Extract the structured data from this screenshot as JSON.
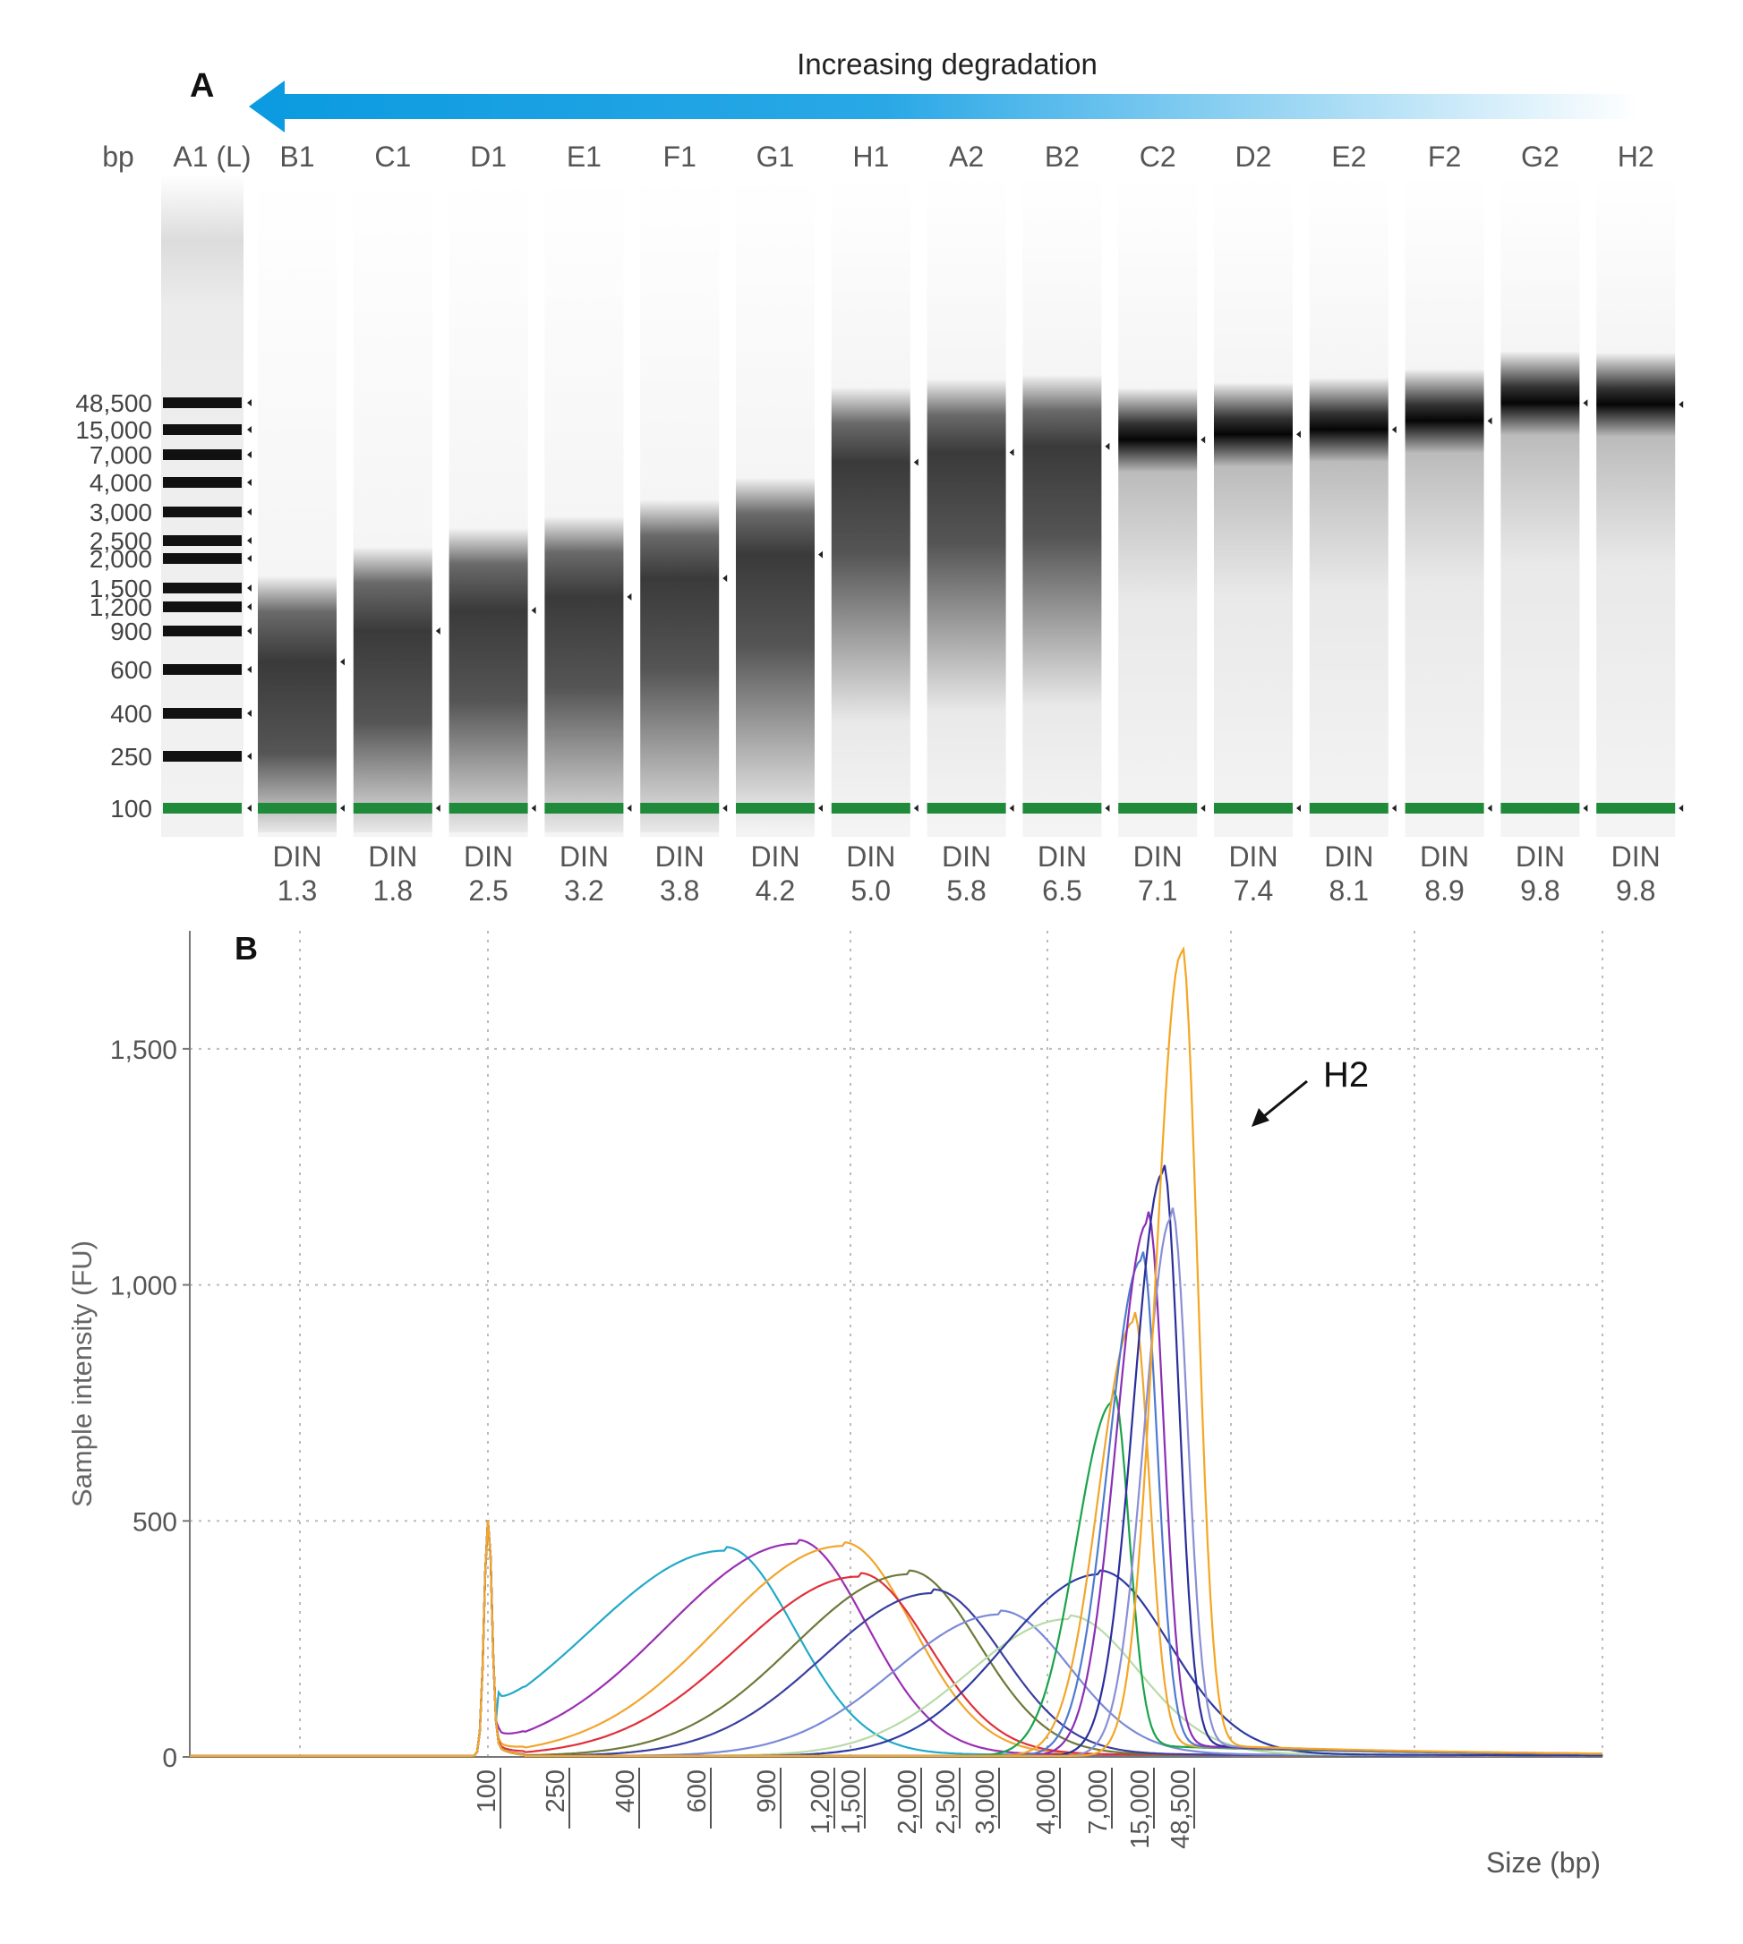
{
  "chart_data": [
    {
      "type": "gel",
      "panel_label": "A",
      "arrow_label": "Increasing degradation",
      "unit_label": "bp",
      "ladder_lane": "A1 (L)",
      "ladder_sizes": [
        "48,500",
        "15,000",
        "7,000",
        "4,000",
        "3,000",
        "2,500",
        "2,000",
        "1,500",
        "1,200",
        "900",
        "600",
        "400",
        "250",
        "100"
      ],
      "ladder_values": [
        48500,
        15000,
        7000,
        4000,
        3000,
        2500,
        2000,
        1500,
        1200,
        900,
        600,
        400,
        250,
        100
      ],
      "lanes": [
        {
          "name": "B1",
          "din_label": "DIN",
          "din": "1.3",
          "peak_bp": 650
        },
        {
          "name": "C1",
          "din_label": "DIN",
          "din": "1.8",
          "peak_bp": 900
        },
        {
          "name": "D1",
          "din_label": "DIN",
          "din": "2.5",
          "peak_bp": 1150
        },
        {
          "name": "E1",
          "din_label": "DIN",
          "din": "3.2",
          "peak_bp": 1350
        },
        {
          "name": "F1",
          "din_label": "DIN",
          "din": "3.8",
          "peak_bp": 1650
        },
        {
          "name": "G1",
          "din_label": "DIN",
          "din": "4.2",
          "peak_bp": 2100
        },
        {
          "name": "H1",
          "din_label": "DIN",
          "din": "5.0",
          "peak_bp": 6000
        },
        {
          "name": "A2",
          "din_label": "DIN",
          "din": "5.8",
          "peak_bp": 7500
        },
        {
          "name": "B2",
          "din_label": "DIN",
          "din": "6.5",
          "peak_bp": 9000
        },
        {
          "name": "C2",
          "din_label": "DIN",
          "din": "7.1",
          "peak_bp": 11000
        },
        {
          "name": "D2",
          "din_label": "DIN",
          "din": "7.4",
          "peak_bp": 13000
        },
        {
          "name": "E2",
          "din_label": "DIN",
          "din": "8.1",
          "peak_bp": 15000
        },
        {
          "name": "F2",
          "din_label": "DIN",
          "din": "8.9",
          "peak_bp": 22000
        },
        {
          "name": "G2",
          "din_label": "DIN",
          "din": "9.8",
          "peak_bp": 48000
        },
        {
          "name": "H2",
          "din_label": "DIN",
          "din": "9.8",
          "peak_bp": 45000
        }
      ],
      "marker_color": "#1f8a3a"
    },
    {
      "type": "line",
      "panel_label": "B",
      "ylabel": "Sample intensity (FU)",
      "xlabel": "Size (bp)",
      "ylim": [
        0,
        1750
      ],
      "yticks": [
        0,
        500,
        1000,
        1500
      ],
      "ytick_labels": [
        "0",
        "500",
        "1,000",
        "1,500"
      ],
      "xticks": [
        100,
        250,
        400,
        600,
        900,
        1200,
        1500,
        2000,
        2500,
        3000,
        4000,
        7000,
        15000,
        48500
      ],
      "xtick_labels": [
        "100",
        "250",
        "400",
        "600",
        "900",
        "1,200",
        "1,500",
        "2,000",
        "2,500",
        "3,000",
        "4,000",
        "7,000",
        "15,000",
        "48,500"
      ],
      "x_scale": "ladder (nonlinear)",
      "grid": true,
      "annotation": {
        "text": "H2",
        "target_bp": 48000,
        "target_fu": 1400
      },
      "series": [
        {
          "color": "#22a9c9",
          "marker_fu": 500,
          "peak_bp": 700,
          "peak_fu": 435
        },
        {
          "color": "#9a2fb2",
          "marker_fu": 500,
          "peak_bp": 1050,
          "peak_fu": 450
        },
        {
          "color": "#f2a52c",
          "marker_fu": 500,
          "peak_bp": 1400,
          "peak_fu": 445
        },
        {
          "color": "#e0303a",
          "marker_fu": 500,
          "peak_bp": 1550,
          "peak_fu": 380
        },
        {
          "color": "#6b7a3a",
          "marker_fu": 500,
          "peak_bp": 2000,
          "peak_fu": 385
        },
        {
          "color": "#3b3f9e",
          "marker_fu": 500,
          "peak_bp": 2300,
          "peak_fu": 345
        },
        {
          "color": "#7a8ad8",
          "marker_fu": 500,
          "peak_bp": 3200,
          "peak_fu": 300
        },
        {
          "color": "#b7dba8",
          "marker_fu": 500,
          "peak_bp": 5000,
          "peak_fu": 290
        },
        {
          "color": "#2d3aa0",
          "marker_fu": 500,
          "peak_bp": 7000,
          "peak_fu": 385
        },
        {
          "color": "#1aa34a",
          "marker_fu": 500,
          "peak_bp": 9000,
          "peak_fu": 750
        },
        {
          "color": "#f0a62e",
          "marker_fu": 500,
          "peak_bp": 13000,
          "peak_fu": 920
        },
        {
          "color": "#4f7ad0",
          "marker_fu": 500,
          "peak_bp": 15000,
          "peak_fu": 1050
        },
        {
          "color": "#8a2fb5",
          "marker_fu": 500,
          "peak_bp": 18000,
          "peak_fu": 1130
        },
        {
          "color": "#2b2f9a",
          "marker_fu": 500,
          "peak_bp": 28000,
          "peak_fu": 1235
        },
        {
          "color": "#8a8fd4",
          "marker_fu": 500,
          "peak_bp": 36000,
          "peak_fu": 1140
        },
        {
          "color": "#f5a623",
          "marker_fu": 500,
          "peak_bp": 48000,
          "peak_fu": 1700
        }
      ]
    }
  ]
}
